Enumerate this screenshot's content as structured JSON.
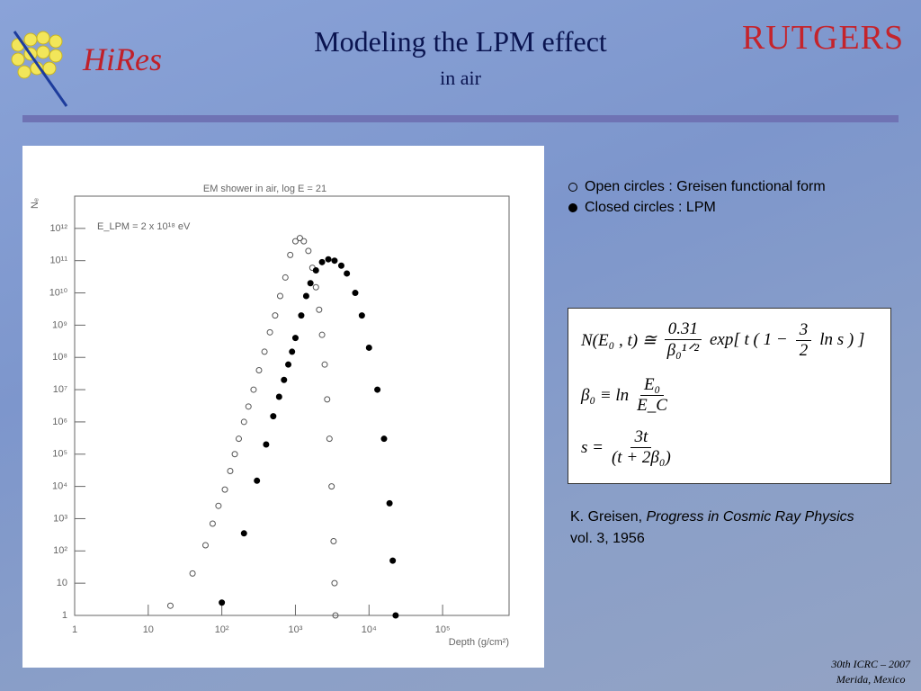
{
  "header": {
    "title": "Modeling the LPM effect",
    "subtitle": "in air",
    "logo_left": "HiRes",
    "logo_right": "RUTGERS"
  },
  "chart_data": {
    "type": "scatter",
    "title": "EM shower in air, log E = 21",
    "annotation": "E_LPM = 2 x 10¹⁸ eV",
    "x_label": "Depth (g/cm²)",
    "y_label": "Nₑ",
    "log_x": true,
    "log_y": true,
    "xlim": [
      1,
      800000
    ],
    "ylim": [
      1,
      10000000000000
    ],
    "xticks": [
      1,
      10,
      {
        "value": 100,
        "label": "10²"
      },
      {
        "value": 1000,
        "label": "10³"
      },
      {
        "value": 10000,
        "label": "10⁴"
      },
      {
        "value": 100000,
        "label": "10⁵"
      }
    ],
    "yticks": [
      1,
      10,
      {
        "value": 100,
        "label": "10²"
      },
      {
        "value": 1000,
        "label": "10³"
      },
      {
        "value": 10000,
        "label": "10⁴"
      },
      {
        "value": 100000,
        "label": "10⁵"
      },
      {
        "value": 1000000,
        "label": "10⁶"
      },
      {
        "value": 10000000,
        "label": "10⁷"
      },
      {
        "value": 100000000,
        "label": "10⁸"
      },
      {
        "value": 1000000000,
        "label": "10⁹"
      },
      {
        "value": 10000000000,
        "label": "10¹⁰"
      },
      {
        "value": 100000000000,
        "label": "10¹¹"
      },
      {
        "value": 1000000000000,
        "label": "10¹²"
      }
    ],
    "series": [
      {
        "name": "Open circles : Greisen functional form",
        "marker": "open",
        "color": "#555555",
        "x": [
          20,
          40,
          60,
          75,
          90,
          110,
          130,
          150,
          170,
          200,
          230,
          270,
          320,
          380,
          450,
          530,
          620,
          730,
          850,
          1000,
          1150,
          1300,
          1500,
          1700,
          1900,
          2100,
          2300,
          2500,
          2700,
          2900,
          3100,
          3300,
          3400,
          3500
        ],
        "values": [
          2,
          20,
          150,
          700,
          2500,
          8000,
          30000,
          100000,
          300000,
          1000000,
          3000000,
          10000000,
          40000000,
          150000000,
          600000000,
          2000000000,
          8000000000,
          30000000000,
          150000000000,
          400000000000,
          500000000000,
          400000000000,
          200000000000,
          60000000000,
          15000000000,
          3000000000,
          500000000,
          60000000,
          5000000,
          300000,
          10000,
          200,
          10,
          1
        ]
      },
      {
        "name": "Closed circles : LPM",
        "marker": "filled",
        "color": "#000000",
        "x": [
          100,
          200,
          300,
          400,
          500,
          600,
          700,
          800,
          900,
          1000,
          1200,
          1400,
          1600,
          1900,
          2300,
          2800,
          3400,
          4200,
          5000,
          6500,
          8000,
          10000,
          13000,
          16000,
          19000,
          21000,
          23000
        ],
        "values": [
          2.5,
          350,
          15000,
          200000,
          1500000,
          6000000,
          20000000,
          60000000,
          150000000,
          400000000,
          2000000000,
          8000000000,
          20000000000,
          50000000000,
          90000000000,
          110000000000,
          100000000000,
          70000000000,
          40000000000,
          10000000000,
          2000000000,
          200000000,
          10000000,
          300000,
          3000,
          50,
          1
        ]
      }
    ]
  },
  "formulas": {
    "f1_lhs": "N(E₀ , t) ≅",
    "f1_num": "0.31",
    "f1_den": "β₀¹ᐟ²",
    "f1_mid": "exp[ t ( 1 −",
    "f1_num2": "3",
    "f1_den2": "2",
    "f1_end": "ln s ) ]",
    "f2_lhs": "β₀ ≡ ln",
    "f2_num": "E₀",
    "f2_den": "E_C",
    "f3_lhs": "s =",
    "f3_num": "3t",
    "f3_den": "(t + 2β₀)"
  },
  "citation": {
    "author": "K. Greisen,",
    "work": "Progress in Cosmic Ray Physics",
    "rest": "vol. 3, 1956"
  },
  "footer": {
    "line1": "30th ICRC – 2007",
    "line2": "Merida, Mexico"
  }
}
